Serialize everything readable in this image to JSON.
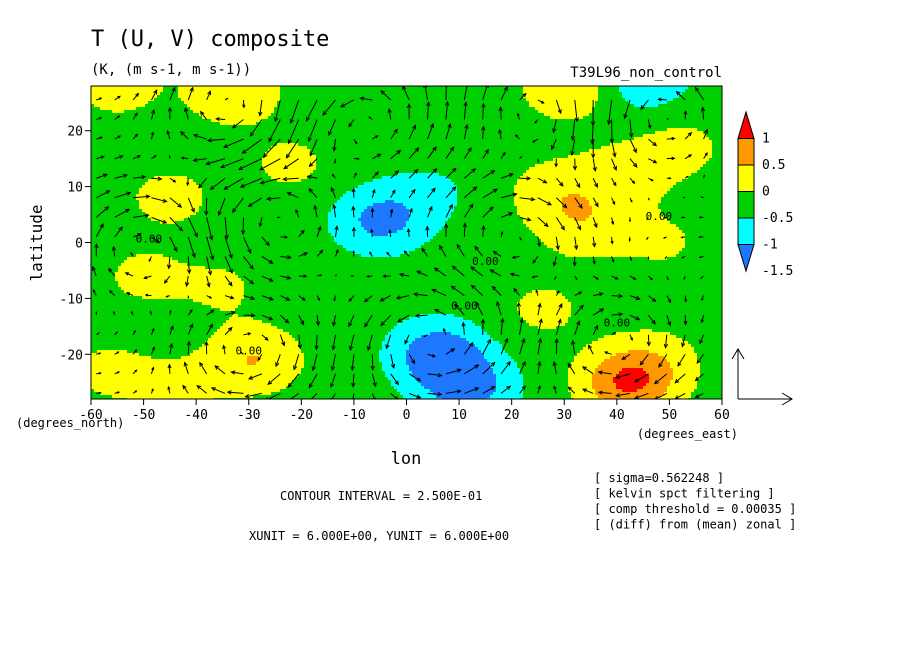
{
  "chart_data": {
    "type": "heatmap",
    "title": "T (U, V) composite",
    "subtitle": "(K, (m s-1, m s-1))",
    "run_label": "T39L96_non_control",
    "xlabel": "lon",
    "ylabel": "latitude",
    "x_unit_label": "(degrees_east)",
    "y_unit_label": "(degrees_north)",
    "xlim": [
      -60,
      60
    ],
    "ylim": [
      -28,
      28
    ],
    "x_ticks": [
      "-60",
      "-50",
      "-40",
      "-30",
      "-20",
      "-10",
      "0",
      "10",
      "20",
      "30",
      "40",
      "50",
      "60"
    ],
    "y_ticks": [
      "20",
      "10",
      "0",
      "-10",
      "-20"
    ],
    "colorbar": {
      "labels": [
        "1",
        "0.5",
        "0",
        "-0.5",
        "-1",
        "-1.5"
      ],
      "levels": [
        -1.5,
        -1.0,
        -0.5,
        0.0,
        0.5,
        1.0
      ],
      "colors": [
        "#1e78ff",
        "#00ffff",
        "#00d000",
        "#ffff00",
        "#ff9900",
        "#ff0000"
      ]
    },
    "contour_labels": [
      "0.00",
      "0.00",
      "0.00",
      "0.00",
      "0.00",
      "0.00"
    ],
    "contour_interval": "CONTOUR INTERVAL = 2.500E-01",
    "vector_units": "XUNIT = 6.000E+00, YUNIT = 6.000E+00",
    "notes": [
      "[ sigma=0.562248 ]",
      "[ kelvin spct filtering ]",
      "[ comp threshold = 0.00035 ]",
      "[ (diff) from (mean) zonal ]"
    ],
    "background_level": -0.25,
    "anomalies": [
      {
        "lon": -45,
        "lat": 8,
        "value": 0.4
      },
      {
        "lon": -55,
        "lat": 28,
        "value": 0.45
      },
      {
        "lon": -33,
        "lat": 27,
        "value": 0.65
      },
      {
        "lon": -22,
        "lat": 14,
        "value": 0.35
      },
      {
        "lon": -50,
        "lat": -6,
        "value": 0.35
      },
      {
        "lon": -35,
        "lat": -8,
        "value": 0.3
      },
      {
        "lon": -29,
        "lat": -21,
        "value": 0.75
      },
      {
        "lon": -44,
        "lat": -26,
        "value": 0.35
      },
      {
        "lon": -57,
        "lat": -23,
        "value": 0.35
      },
      {
        "lon": 28,
        "lat": 9,
        "value": 0.5
      },
      {
        "lon": 41,
        "lat": 12,
        "value": 0.45
      },
      {
        "lon": 34,
        "lat": 3,
        "value": 0.55
      },
      {
        "lon": 52,
        "lat": 17,
        "value": 0.4
      },
      {
        "lon": 49,
        "lat": 0,
        "value": 0.3
      },
      {
        "lon": 26,
        "lat": -12,
        "value": 0.35
      },
      {
        "lon": 31,
        "lat": 28,
        "value": 0.7
      },
      {
        "lon": 42,
        "lat": -25,
        "value": 1.25
      },
      {
        "lon": 48,
        "lat": -21,
        "value": 0.35
      },
      {
        "lon": -5,
        "lat": 4,
        "value": -0.9
      },
      {
        "lon": 6,
        "lat": -20,
        "value": -1.1
      },
      {
        "lon": 12,
        "lat": -26,
        "value": -0.9
      },
      {
        "lon": 45,
        "lat": 29,
        "value": -0.65
      },
      {
        "lon": 5,
        "lat": 9,
        "value": -0.3
      }
    ],
    "vortices": [
      {
        "lon": -33,
        "lat": 24,
        "sense": -1
      },
      {
        "lon": -8,
        "lat": 22,
        "sense": 1
      },
      {
        "lon": 25,
        "lat": 25,
        "sense": -1
      },
      {
        "lon": 48,
        "lat": 24,
        "sense": 1
      },
      {
        "lon": -50,
        "lat": 0,
        "sense": -1
      },
      {
        "lon": -25,
        "lat": 5,
        "sense": 1
      },
      {
        "lon": -30,
        "lat": -20,
        "sense": -1
      },
      {
        "lon": 5,
        "lat": -18,
        "sense": 1
      },
      {
        "lon": 40,
        "lat": -18,
        "sense": -1
      },
      {
        "lon": 20,
        "lat": 2,
        "sense": -1
      }
    ]
  }
}
